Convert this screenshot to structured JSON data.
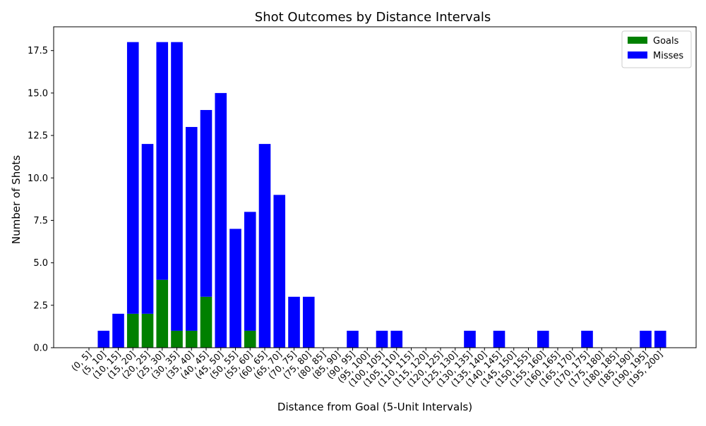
{
  "chart_data": {
    "type": "bar",
    "stacked": true,
    "title": "Shot Outcomes by Distance Intervals",
    "xlabel": "Distance from Goal (5-Unit Intervals)",
    "ylabel": "Number of Shots",
    "ylim": [
      0,
      18.9
    ],
    "yticks": [
      "0.0",
      "2.5",
      "5.0",
      "7.5",
      "10.0",
      "12.5",
      "15.0",
      "17.5"
    ],
    "grid": false,
    "legend_position": "top-right",
    "categories": [
      "(0, 5]",
      "(5, 10]",
      "(10, 15]",
      "(15, 20]",
      "(20, 25]",
      "(25, 30]",
      "(30, 35]",
      "(35, 40]",
      "(40, 45]",
      "(45, 50]",
      "(50, 55]",
      "(55, 60]",
      "(60, 65]",
      "(65, 70]",
      "(70, 75]",
      "(75, 80]",
      "(80, 85]",
      "(85, 90]",
      "(90, 95]",
      "(95, 100]",
      "(100, 105]",
      "(105, 110]",
      "(110, 115]",
      "(115, 120]",
      "(120, 125]",
      "(125, 130]",
      "(130, 135]",
      "(135, 140]",
      "(140, 145]",
      "(145, 150]",
      "(150, 155]",
      "(155, 160]",
      "(160, 165]",
      "(165, 170]",
      "(170, 175]",
      "(175, 180]",
      "(180, 185]",
      "(185, 190]",
      "(190, 195]",
      "(195, 200]"
    ],
    "series": [
      {
        "name": "Goals",
        "color": "#008000",
        "values": [
          0,
          0,
          0,
          2,
          2,
          4,
          1,
          1,
          3,
          0,
          0,
          1,
          0,
          0,
          0,
          0,
          0,
          0,
          0,
          0,
          0,
          0,
          0,
          0,
          0,
          0,
          0,
          0,
          0,
          0,
          0,
          0,
          0,
          0,
          0,
          0,
          0,
          0,
          0,
          0
        ]
      },
      {
        "name": "Misses",
        "color": "#0000ff",
        "values": [
          0,
          1,
          2,
          16,
          10,
          14,
          17,
          12,
          11,
          15,
          7,
          7,
          12,
          9,
          3,
          3,
          0,
          0,
          1,
          0,
          1,
          1,
          0,
          0,
          0,
          0,
          1,
          0,
          1,
          0,
          0,
          1,
          0,
          0,
          1,
          0,
          0,
          0,
          1,
          1
        ]
      }
    ]
  }
}
